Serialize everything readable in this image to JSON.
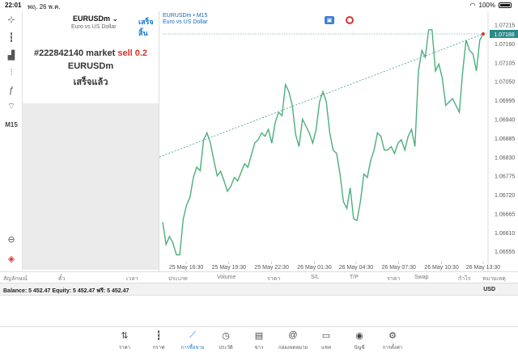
{
  "status": {
    "time": "22:01",
    "date": "พฤ. 26 พ.ค.",
    "battery": "100%"
  },
  "left_tools": [
    {
      "icon": "crosshair-icon",
      "glyph": "⊹"
    },
    {
      "icon": "candles-icon",
      "glyph": "┇"
    },
    {
      "icon": "bars-icon",
      "glyph": "▟"
    },
    {
      "icon": "sliders-icon",
      "glyph": "⫶"
    },
    {
      "icon": "function-icon",
      "glyph": "ƒ"
    },
    {
      "icon": "shapes-icon",
      "glyph": "⌔"
    },
    {
      "icon": "timeframe",
      "glyph": "M15"
    },
    {
      "icon": "zoom-icon",
      "glyph": "⊖"
    },
    {
      "icon": "mt-logo-icon",
      "glyph": "◈"
    }
  ],
  "order_panel": {
    "symbol": "EURUSDm",
    "description": "Euro vs US Dollar",
    "done_button": "เสร็จสิ้น",
    "order_prefix": "#222842140 market",
    "order_side": "sell 0.2",
    "order_symbol": "EURUSDm",
    "order_status": "เสร็จแล้ว"
  },
  "chart": {
    "symbol_tf": "EURUSDm • M15",
    "description": "Euro vs US Dollar",
    "current_price": "1.07188",
    "line_color": "#4caf7a",
    "trend_color": "#2a8a8a"
  },
  "chart_data": {
    "type": "line",
    "y_ticks": [
      "1.07215",
      "1.07160",
      "1.07105",
      "1.07050",
      "1.06995",
      "1.06940",
      "1.06885",
      "1.06830",
      "1.06775",
      "1.06720",
      "1.06665",
      "1.06610",
      "1.06555"
    ],
    "x_ticks": [
      "25 May 16:30",
      "25 May 19:30",
      "25 May 22:30",
      "26 May 01:30",
      "26 May 04:30",
      "26 May 07:30",
      "26 May 10:30",
      "26 May 13:30"
    ],
    "ylim": [
      1.06525,
      1.07235
    ],
    "values": [
      1.0664,
      1.06575,
      1.06598,
      1.0658,
      1.06545,
      1.06545,
      1.06648,
      1.0669,
      1.06712,
      1.0677,
      1.068,
      1.0679,
      1.0688,
      1.069,
      1.0687,
      1.0682,
      1.06775,
      1.06788,
      1.0676,
      1.0673,
      1.06745,
      1.0677,
      1.0676,
      1.06785,
      1.0681,
      1.068,
      1.06835,
      1.0687,
      1.0688,
      1.069,
      1.0689,
      1.0691,
      1.0687,
      1.0693,
      1.0696,
      1.0695,
      1.0704,
      1.0702,
      1.0698,
      1.06895,
      1.0686,
      1.0694,
      1.0692,
      1.069,
      1.0687,
      1.0691,
      1.0699,
      1.0702,
      1.0699,
      1.069,
      1.0685,
      1.0684,
      1.0678,
      1.067,
      1.0668,
      1.0674,
      1.0665,
      1.06645,
      1.067,
      1.0678,
      1.0677,
      1.0682,
      1.0685,
      1.069,
      1.0689,
      1.0685,
      1.0685,
      1.0686,
      1.0684,
      1.0687,
      1.0688,
      1.0685,
      1.0689,
      1.0691,
      1.0686,
      1.0708,
      1.0714,
      1.0712,
      1.072,
      1.072,
      1.0708,
      1.071,
      1.0706,
      1.0698,
      1.0699,
      1.07,
      1.0698,
      1.0696,
      1.0708,
      1.0717,
      1.0714,
      1.0713,
      1.0708,
      1.0717,
      1.07188
    ],
    "trendline": [
      1.0683,
      1.07188
    ]
  },
  "columns": [
    "สัญลักษณ์",
    "ตั๋ว",
    "เวลา",
    "ประเภท",
    "Volume",
    "ราคา",
    "S/L",
    "T/P",
    "ราคา",
    "Swap",
    "กำไร",
    "หมายเหตุ"
  ],
  "balance": {
    "text": "Balance: 5 452.47 Equity: 5 452.47 ฟรี: 5 452.47",
    "currency": "USD"
  },
  "nav": [
    {
      "icon": "quotes-icon",
      "glyph": "⇅",
      "label": "ราคา"
    },
    {
      "icon": "chart-icon",
      "glyph": "┇",
      "label": "กราฟ"
    },
    {
      "icon": "trade-icon",
      "glyph": "⟋",
      "label": "การซื้อขาย",
      "active": true
    },
    {
      "icon": "history-icon",
      "glyph": "◷",
      "label": "ประวัติ"
    },
    {
      "icon": "news-icon",
      "glyph": "▤",
      "label": "ข่าว"
    },
    {
      "icon": "mailbox-icon",
      "glyph": "@",
      "label": "กล่องจดหมาย"
    },
    {
      "icon": "chat-icon",
      "glyph": "▭",
      "label": "แชท"
    },
    {
      "icon": "accounts-icon",
      "glyph": "◉",
      "label": "บัญชี"
    },
    {
      "icon": "settings-icon",
      "glyph": "⚙",
      "label": "การตั้งค่า"
    }
  ]
}
